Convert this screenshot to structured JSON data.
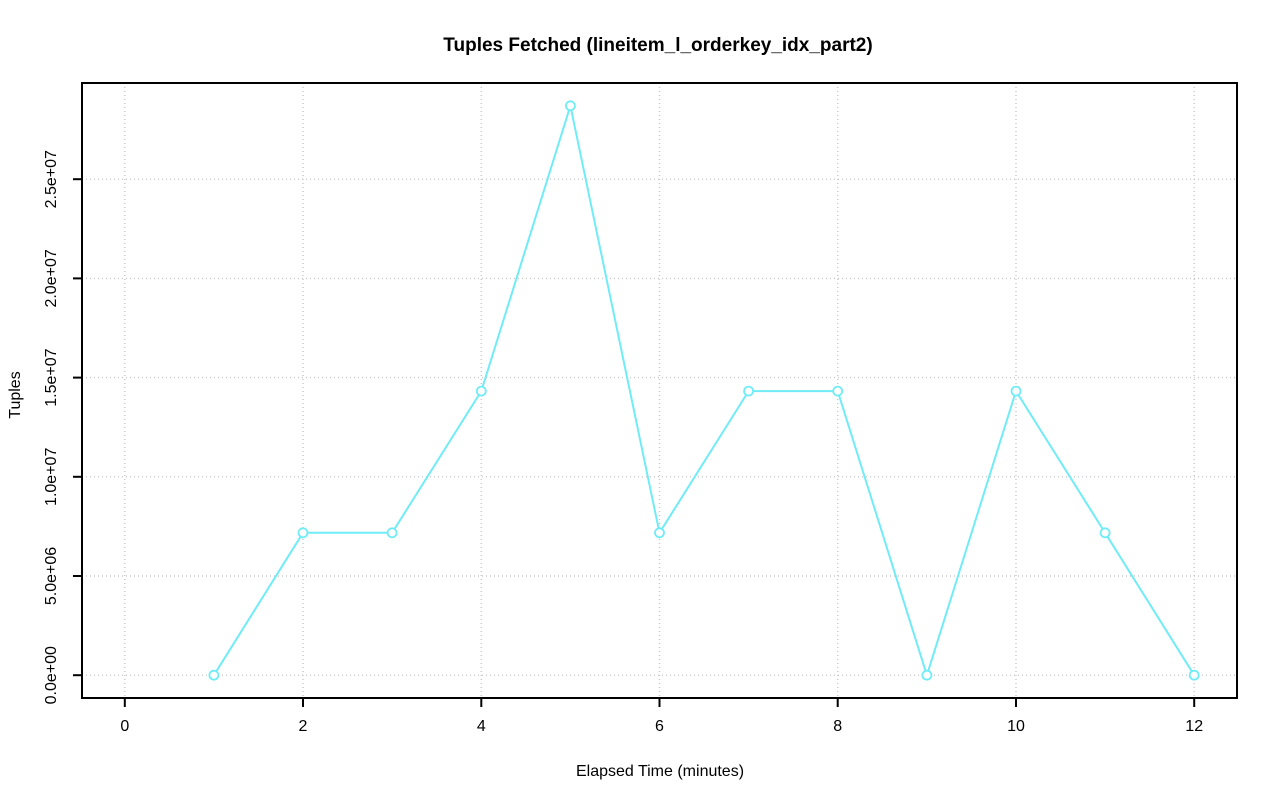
{
  "chart_data": {
    "type": "line",
    "title": "Tuples Fetched (lineitem_l_orderkey_idx_part2)",
    "xlabel": "Elapsed Time (minutes)",
    "ylabel": "Tuples",
    "x": [
      1,
      2,
      3,
      4,
      5,
      6,
      7,
      8,
      9,
      10,
      11,
      12
    ],
    "values": [
      0,
      7180000,
      7180000,
      14320000,
      28700000,
      7180000,
      14320000,
      14320000,
      0,
      14320000,
      7180000,
      0
    ],
    "xlim": [
      0,
      12
    ],
    "ylim": [
      0,
      28700000
    ],
    "x_ticks": [
      {
        "v": 0,
        "label": "0"
      },
      {
        "v": 2,
        "label": "2"
      },
      {
        "v": 4,
        "label": "4"
      },
      {
        "v": 6,
        "label": "6"
      },
      {
        "v": 8,
        "label": "8"
      },
      {
        "v": 10,
        "label": "10"
      },
      {
        "v": 12,
        "label": "12"
      }
    ],
    "y_ticks": [
      {
        "v": 0,
        "label": "0.0e+00"
      },
      {
        "v": 5000000,
        "label": "5.0e+06"
      },
      {
        "v": 10000000,
        "label": "1.0e+07"
      },
      {
        "v": 15000000,
        "label": "1.5e+07"
      },
      {
        "v": 20000000,
        "label": "2.0e+07"
      },
      {
        "v": 25000000,
        "label": "2.5e+07"
      }
    ],
    "grid": true,
    "legend": "none",
    "marker": "open-circle",
    "colors": {
      "line": "#70ecf7",
      "marker_fill": "#ffffff",
      "grid": "#c7c7c7",
      "axis": "#000000",
      "background": "#ffffff"
    }
  }
}
